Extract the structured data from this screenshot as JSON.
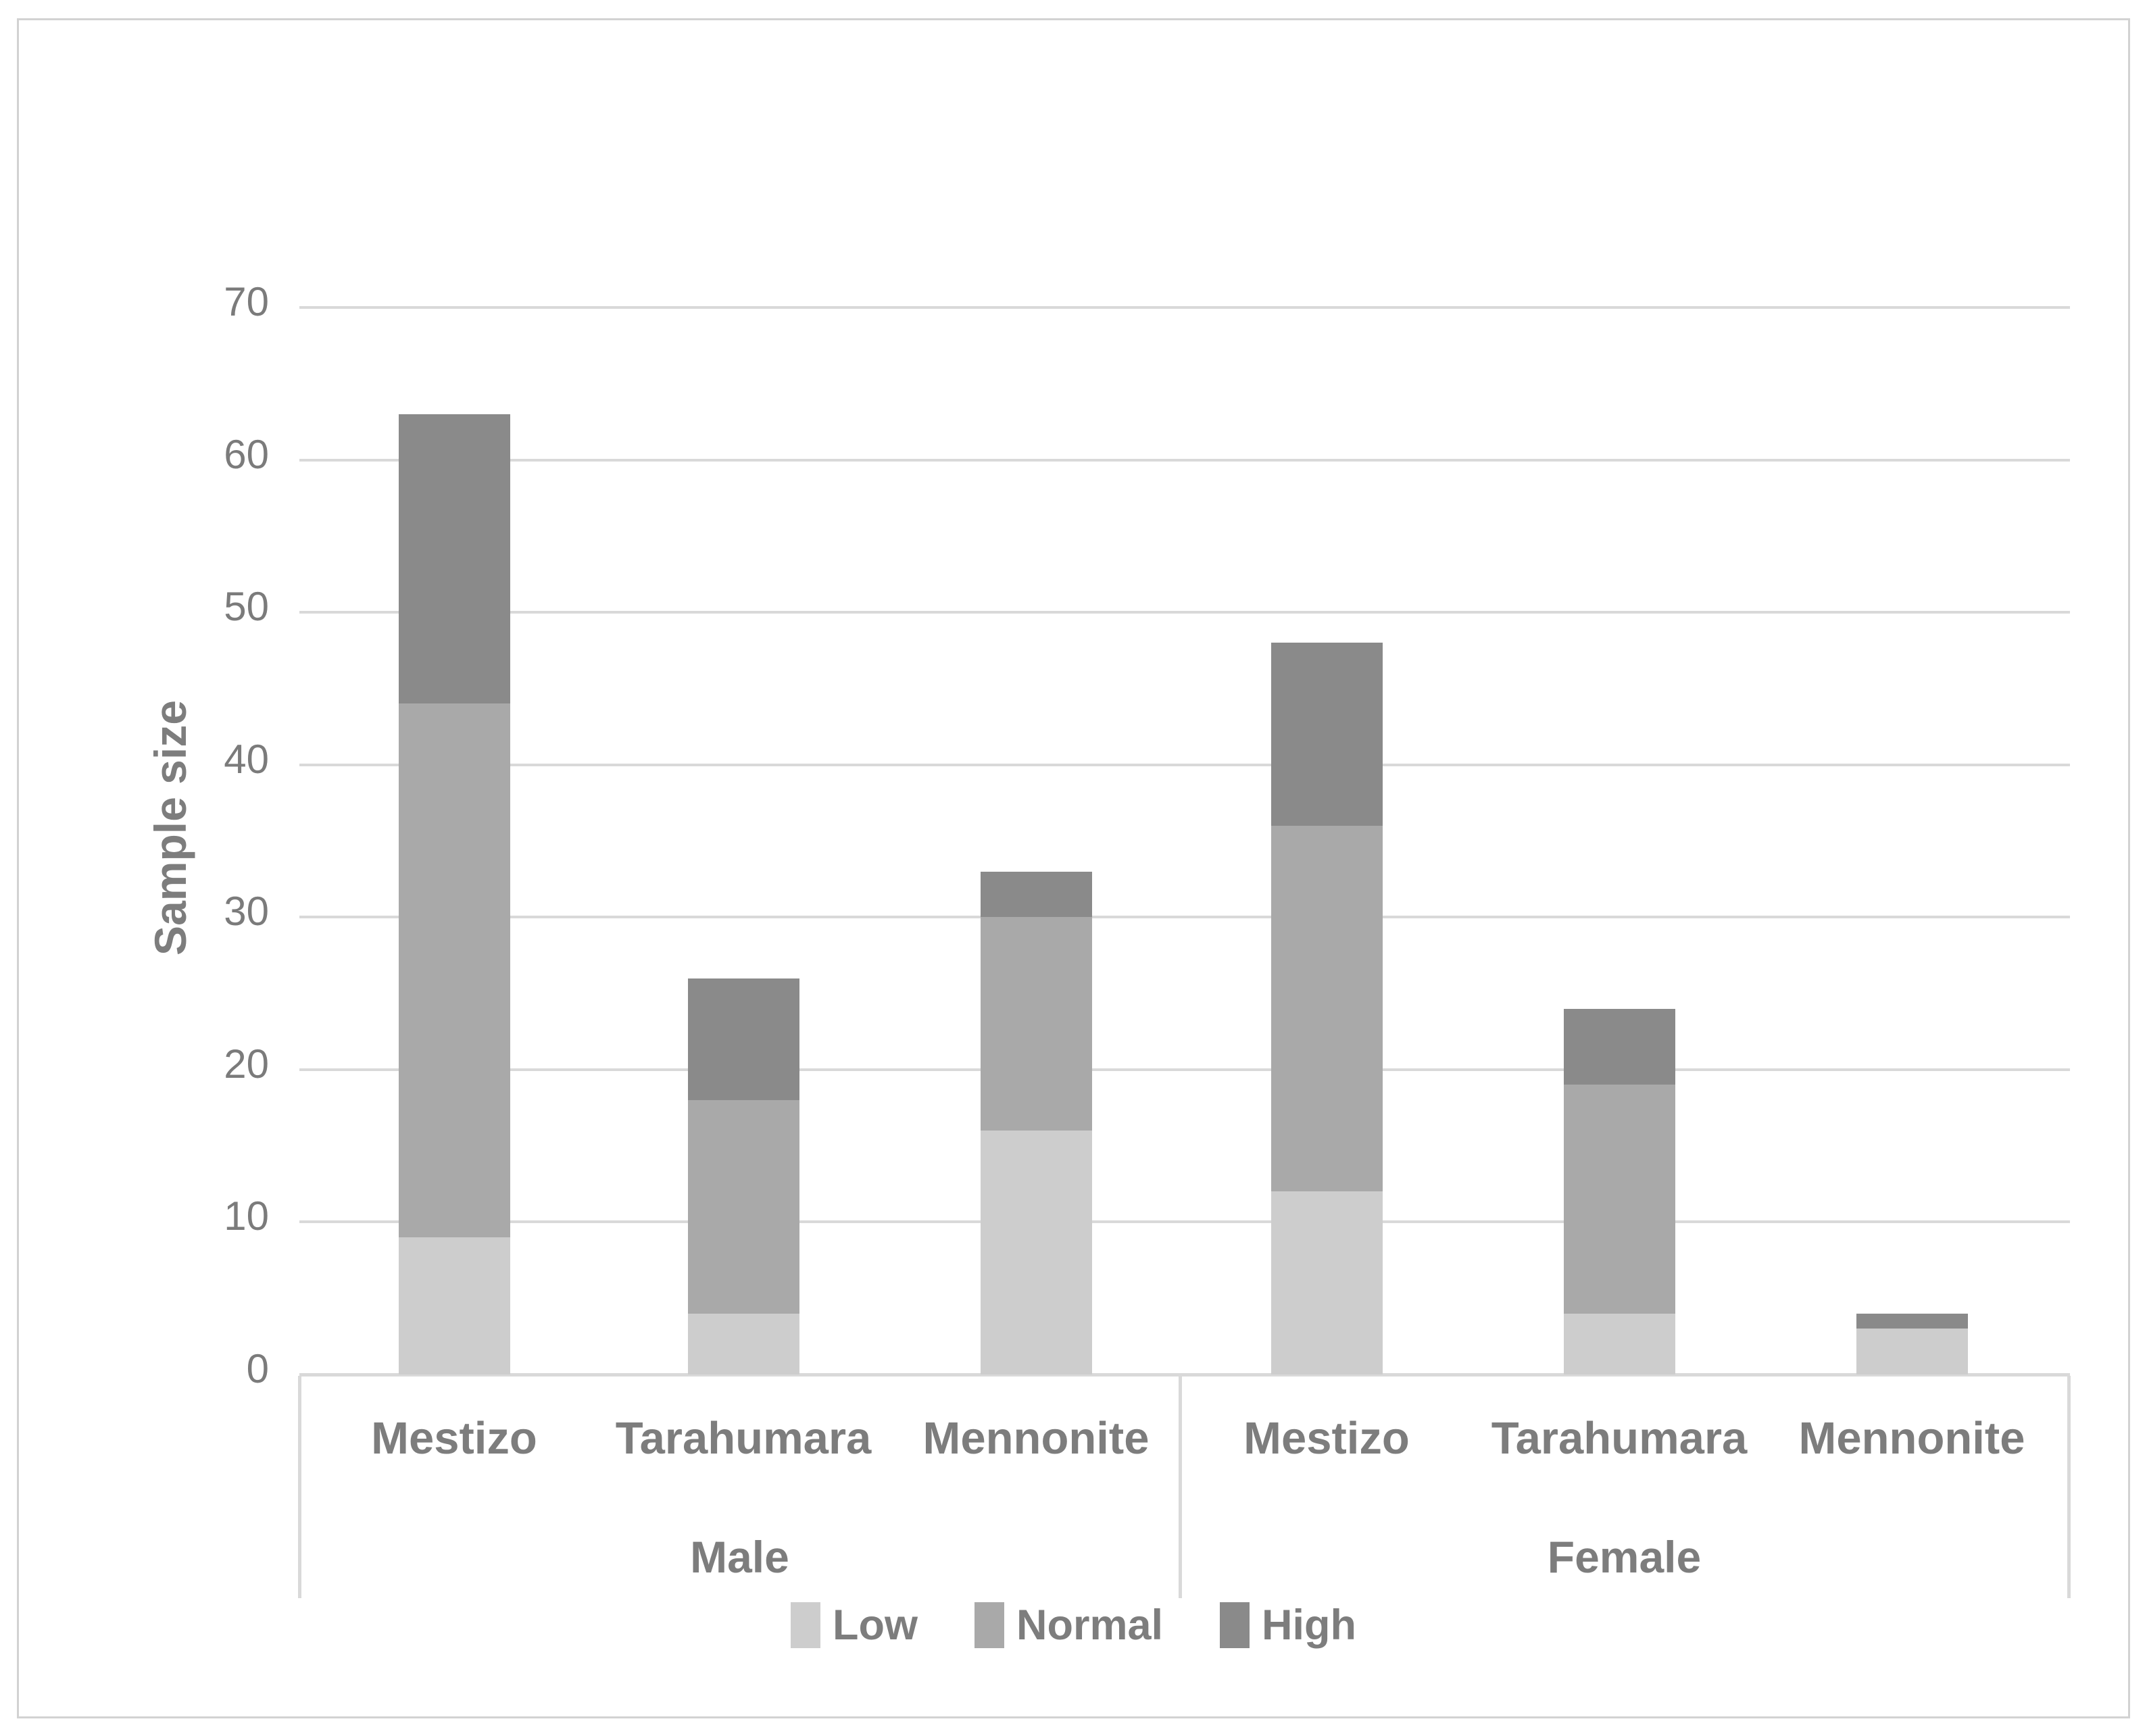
{
  "chart_data": {
    "type": "bar",
    "stacked": true,
    "title": "",
    "xlabel": "",
    "ylabel": "Sample size",
    "ylim": [
      0,
      70
    ],
    "yticks": [
      0,
      10,
      20,
      30,
      40,
      50,
      60,
      70
    ],
    "grid": true,
    "legend_position": "bottom",
    "x_axis": {
      "groups": [
        {
          "label": "Male",
          "categories": [
            "Mestizo",
            "Tarahumara",
            "Mennonite"
          ]
        },
        {
          "label": "Female",
          "categories": [
            "Mestizo",
            "Tarahumara",
            "Mennonite"
          ]
        }
      ]
    },
    "series": [
      {
        "name": "Low",
        "color": "#cdcdcd",
        "values": [
          9,
          4,
          16,
          12,
          4,
          3
        ]
      },
      {
        "name": "Normal",
        "color": "#a9a9a9",
        "values": [
          35,
          14,
          14,
          24,
          15,
          0
        ]
      },
      {
        "name": "High",
        "color": "#8a8a8a",
        "values": [
          19,
          8,
          3,
          12,
          5,
          1
        ]
      }
    ],
    "bar_totals": [
      63,
      26,
      33,
      48,
      24,
      4
    ]
  },
  "colors": {
    "low": "#cdcdcd",
    "normal": "#a9a9a9",
    "high": "#8a8a8a",
    "gridline": "#d9d9d9",
    "axis_line": "#d9d9d9",
    "frame_border": "#d2d2d2",
    "text": "#7d7d7d",
    "tick_text": "#7b7b7b"
  }
}
